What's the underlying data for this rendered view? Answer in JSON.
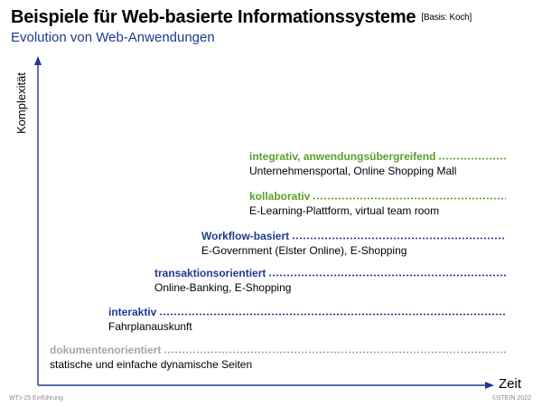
{
  "header": {
    "title": "Beispiele für Web-basierte Informationssysteme",
    "title_note": "[Basis: Koch]",
    "subtitle": "Evolution von Web-Anwendungen"
  },
  "axes": {
    "y_label": "Komplexität",
    "x_label": "Zeit"
  },
  "levels": [
    {
      "name": "integrativ, anwendungsübergreifend",
      "example": "Unternehmensportal, Online Shopping Mall",
      "color": "#5aa02c"
    },
    {
      "name": "kollaborativ",
      "example": "E-Learning-Plattform, virtual team room",
      "color": "#5aa02c"
    },
    {
      "name": "Workflow-basiert",
      "example": "E-Government (Elster Online), E-Shopping",
      "color": "#1f3a8f"
    },
    {
      "name": "transaktionsorientiert",
      "example": "Online-Banking, E-Shopping",
      "color": "#1f3a8f"
    },
    {
      "name": "interaktiv",
      "example": "Fahrplanauskunft",
      "color": "#1f3a8f"
    },
    {
      "name": "dokumentenorientiert",
      "example": "statische und einfache dynamische Seiten",
      "color": "#a6a6a6"
    }
  ],
  "footer": {
    "left": "WT:I-25   Einführung",
    "right": "©STEIN 2022"
  }
}
